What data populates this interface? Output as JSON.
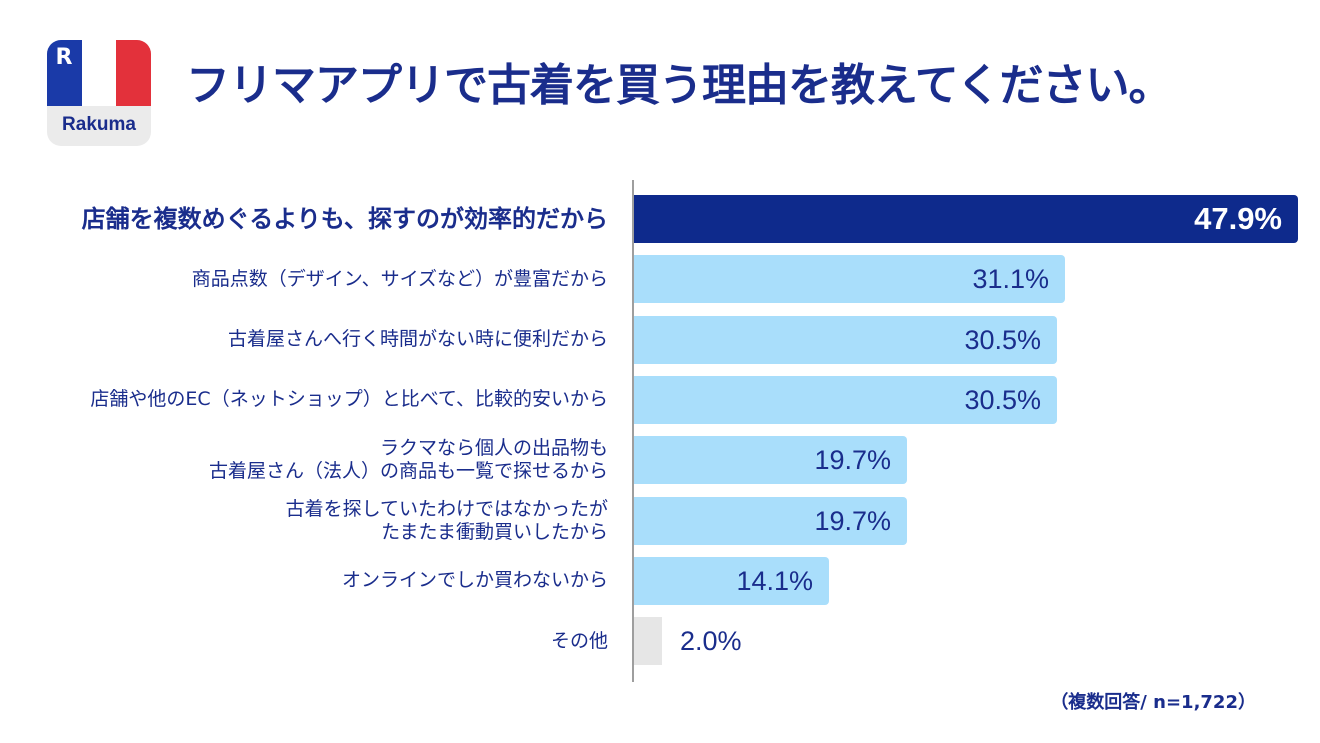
{
  "logo": {
    "brand": "Rakuma",
    "mark": "R"
  },
  "title": "フリマアプリで古着を買う理由を教えてください。",
  "note": "（複数回答/ n=1,722）",
  "colors": {
    "primary": "#0e2a8c",
    "bar": "#a9defb",
    "other": "#e6e6e6",
    "text": "#1a2d8c",
    "flag_blue": "#1a3aa8",
    "flag_white": "#ffffff",
    "flag_red": "#e3313b"
  },
  "chart_data": {
    "type": "bar",
    "orientation": "horizontal",
    "categories": [
      "店舗を複数めぐるよりも、探すのが効率的だから",
      "商品点数（デザイン、サイズなど）が豊富だから",
      "古着屋さんへ行く時間がない時に便利だから",
      "店舗や他のEC（ネットショップ）と比べて、比較的安いから",
      "ラクマなら個人の出品物も\n古着屋さん（法人）の商品も一覧で探せるから",
      "古着を探していたわけではなかったが\nたまたま衝動買いしたから",
      "オンラインでしか買わないから",
      "その他"
    ],
    "values": [
      47.9,
      31.1,
      30.5,
      30.5,
      19.7,
      19.7,
      14.1,
      2.0
    ],
    "value_labels": [
      "47.9%",
      "31.1%",
      "30.5%",
      "30.5%",
      "19.7%",
      "19.7%",
      "14.1%",
      "2.0%"
    ],
    "xlim": [
      0,
      48
    ],
    "unit": "%"
  }
}
